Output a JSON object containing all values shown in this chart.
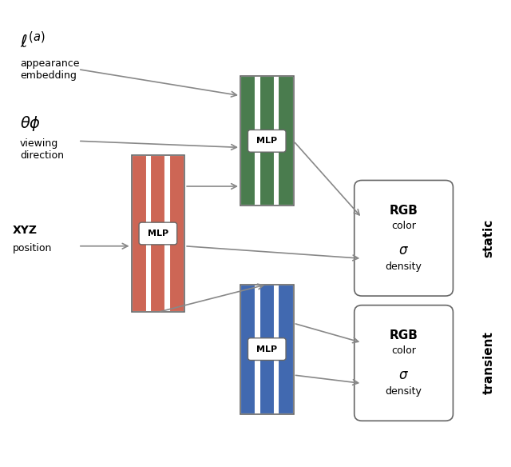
{
  "fig_width": 6.4,
  "fig_height": 5.84,
  "bg_color": "#ffffff",
  "text_color": "#000000",
  "colors": {
    "red_mlp": "#CD6655",
    "green_mlp": "#4A7C4E",
    "blue_mlp": "#4169B0",
    "box_fill": "#ffffff",
    "box_edge": "#666666",
    "arrow_color": "#888888"
  },
  "labels": {
    "l_a": "$\\ell^{(a)}$",
    "appearance_embedding": "appearance\nembedding",
    "theta_phi": "$\\theta\\phi$",
    "viewing_direction": "viewing\ndirection",
    "xyz_label": "XYZ",
    "position_label": "position",
    "mlp": "MLP",
    "static": "static",
    "transient": "transient"
  }
}
